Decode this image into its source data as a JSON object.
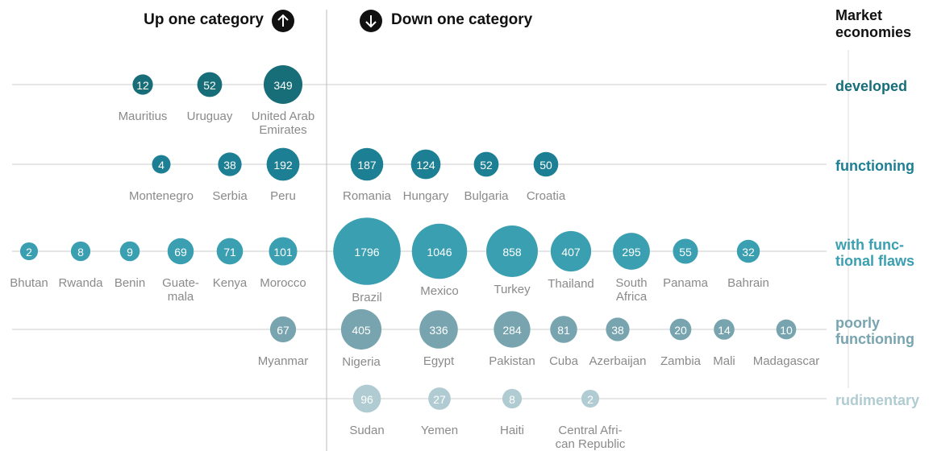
{
  "chart_data": {
    "type": "bubble",
    "up_label": "Up one category",
    "down_label": "Down one category",
    "legend_title": "Market\neconomies",
    "rows": [
      {
        "name": "developed",
        "color": "#176d78",
        "up": [
          {
            "name": "Mauritius",
            "value": 12
          },
          {
            "name": "Uruguay",
            "value": 52
          },
          {
            "name": "United Arab\nEmirates",
            "value": 349
          }
        ],
        "down": []
      },
      {
        "name": "functioning",
        "color": "#1d7f93",
        "up": [
          {
            "name": "Montenegro",
            "value": 4
          },
          {
            "name": "Serbia",
            "value": 38
          },
          {
            "name": "Peru",
            "value": 192
          }
        ],
        "down": [
          {
            "name": "Romania",
            "value": 187
          },
          {
            "name": "Hungary",
            "value": 124
          },
          {
            "name": "Bulgaria",
            "value": 52
          },
          {
            "name": "Croatia",
            "value": 50
          }
        ]
      },
      {
        "name": "with func-\ntional flaws",
        "color": "#3a9fb1",
        "up": [
          {
            "name": "Bhutan",
            "value": 2
          },
          {
            "name": "Rwanda",
            "value": 8
          },
          {
            "name": "Benin",
            "value": 9
          },
          {
            "name": "Guate-\nmala",
            "value": 69
          },
          {
            "name": "Kenya",
            "value": 71
          },
          {
            "name": "Morocco",
            "value": 101
          }
        ],
        "down": [
          {
            "name": "Brazil",
            "value": 1796
          },
          {
            "name": "Mexico",
            "value": 1046
          },
          {
            "name": "Turkey",
            "value": 858
          },
          {
            "name": "Thailand",
            "value": 407
          },
          {
            "name": "South\nAfrica",
            "value": 295
          },
          {
            "name": "Panama",
            "value": 55
          },
          {
            "name": "Bahrain",
            "value": 32
          }
        ]
      },
      {
        "name": "poorly\nfunctioning",
        "color": "#77a4ae",
        "up": [
          {
            "name": "Myanmar",
            "value": 67
          }
        ],
        "down": [
          {
            "name": "Nigeria",
            "value": 405
          },
          {
            "name": "Egypt",
            "value": 336
          },
          {
            "name": "Pakistan",
            "value": 284
          },
          {
            "name": "Cuba",
            "value": 81
          },
          {
            "name": "Azerbaijan",
            "value": 38
          },
          {
            "name": "Zambia",
            "value": 20
          },
          {
            "name": "Mali",
            "value": 14
          },
          {
            "name": "Madagascar",
            "value": 10
          }
        ]
      },
      {
        "name": "rudimentary",
        "color": "#b0ccd2",
        "up": [],
        "down": [
          {
            "name": "Sudan",
            "value": 96
          },
          {
            "name": "Yemen",
            "value": 27
          },
          {
            "name": "Haiti",
            "value": 8
          },
          {
            "name": "Central Afri-\ncan Republic",
            "value": 2
          }
        ]
      }
    ]
  }
}
